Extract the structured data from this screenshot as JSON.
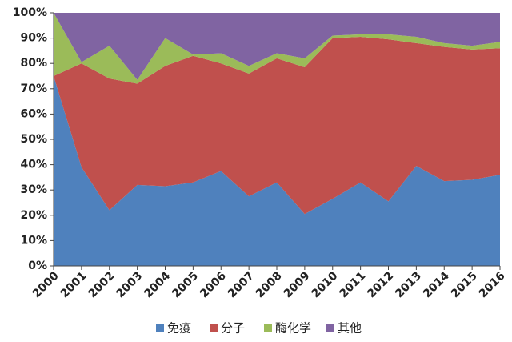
{
  "chart_data": {
    "type": "stacked-area-percent",
    "categories": [
      "2000",
      "2001",
      "2002",
      "2003",
      "2004",
      "2005",
      "2006",
      "2007",
      "2008",
      "2009",
      "2010",
      "2011",
      "2012",
      "2013",
      "2014",
      "2015",
      "2016"
    ],
    "series": [
      {
        "name": "免疫",
        "color": "#4f81bd",
        "values": [
          75,
          39,
          22,
          32,
          31.5,
          33,
          37.5,
          27.5,
          33,
          20.5,
          26.5,
          33,
          25.5,
          39.5,
          33.5,
          34,
          36
        ]
      },
      {
        "name": "分子",
        "color": "#c0504d",
        "values": [
          0,
          41,
          52,
          40,
          47.5,
          50,
          42.5,
          48.5,
          49,
          58,
          63.5,
          57.5,
          64,
          48.5,
          53,
          51.5,
          50
        ]
      },
      {
        "name": "酶化学",
        "color": "#9bbb59",
        "values": [
          25,
          0.5,
          13,
          1.5,
          11,
          0.5,
          4,
          3,
          2,
          3.5,
          1,
          1,
          2,
          2.5,
          1.5,
          1.5,
          2.5
        ]
      },
      {
        "name": "其他",
        "color": "#8064a2",
        "values": [
          0,
          19.5,
          13,
          26.5,
          10,
          16.5,
          16,
          21,
          16,
          18,
          9,
          8.5,
          8.5,
          9.5,
          12,
          13,
          11.5
        ]
      }
    ],
    "ylim": [
      0,
      100
    ],
    "yticks": [
      {
        "value": 0,
        "label": "0%"
      },
      {
        "value": 10,
        "label": "10%"
      },
      {
        "value": 20,
        "label": "20%"
      },
      {
        "value": 30,
        "label": "30%"
      },
      {
        "value": 40,
        "label": "40%"
      },
      {
        "value": 50,
        "label": "50%"
      },
      {
        "value": 60,
        "label": "60%"
      },
      {
        "value": 70,
        "label": "70%"
      },
      {
        "value": 80,
        "label": "80%"
      },
      {
        "value": 90,
        "label": "90%"
      },
      {
        "value": 100,
        "label": "100%"
      }
    ],
    "legend": "bottom"
  }
}
